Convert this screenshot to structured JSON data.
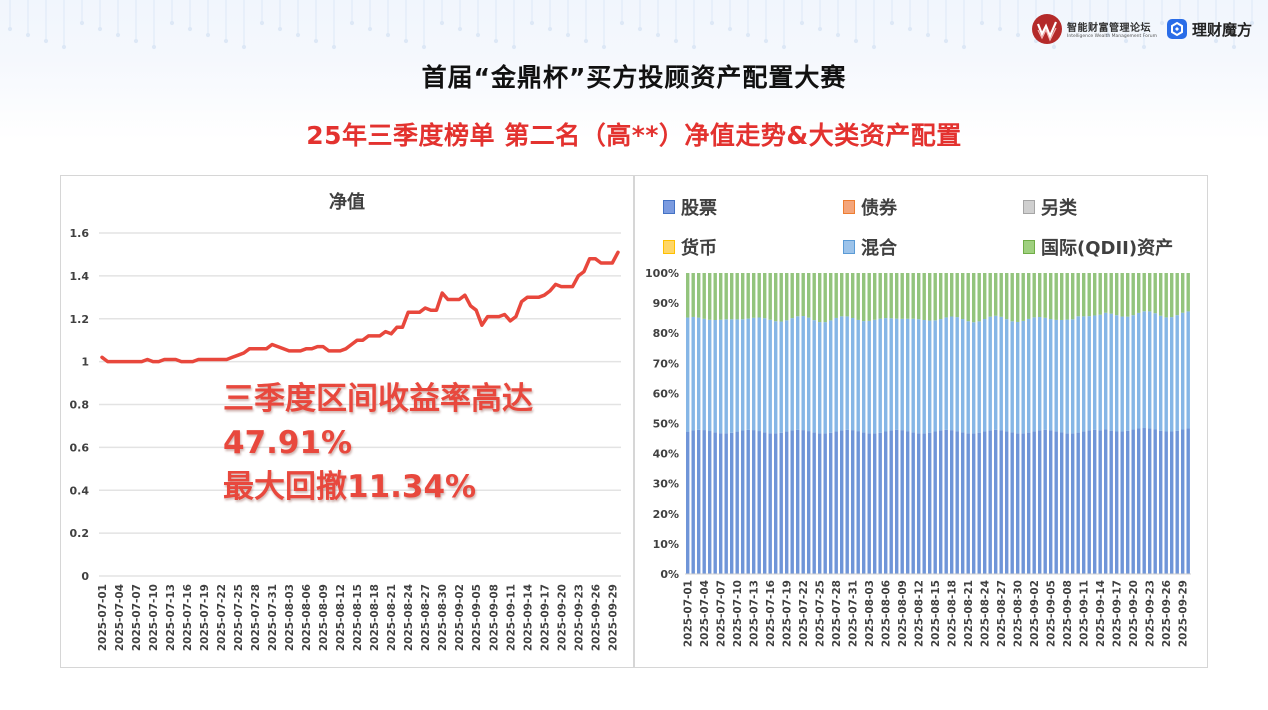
{
  "header": {
    "logos": [
      {
        "name": "智能财富管理论坛",
        "subtitle": "Intelligence Wealth Management Forum"
      },
      {
        "name": "理财魔方"
      }
    ],
    "title": "首届“金鼎杯”买方投顾资产配置大赛",
    "subtitle": "25年三季度榜单 第二名（高**）净值走势&大类资产配置"
  },
  "callout": {
    "line1": "三季度区间收益率高达",
    "line2": "47.91%",
    "line3": "最大回撤11.34%"
  },
  "colors": {
    "line": "#e8473c",
    "title_red": "#e3322f",
    "stock": "#4472c4",
    "bond": "#ed7d31",
    "alternative": "#a5a5a5",
    "cash": "#ffc000",
    "mixed": "#5b9bd5",
    "qdii": "#70ad47"
  },
  "chart_data": [
    {
      "type": "line",
      "title": "净值",
      "xlabel": "",
      "ylabel": "",
      "ylim": [
        0,
        1.6
      ],
      "yticks": [
        "0",
        "0.2",
        "0.4",
        "0.6",
        "0.8",
        "1",
        "1.2",
        "1.4",
        "1.6"
      ],
      "grid": true,
      "legend": "none",
      "x_tick_labels": [
        "2025-07-01",
        "2025-07-04",
        "2025-07-07",
        "2025-07-10",
        "2025-07-13",
        "2025-07-16",
        "2025-07-19",
        "2025-07-22",
        "2025-07-25",
        "2025-07-28",
        "2025-07-31",
        "2025-08-03",
        "2025-08-06",
        "2025-08-09",
        "2025-08-12",
        "2025-08-15",
        "2025-08-18",
        "2025-08-21",
        "2025-08-24",
        "2025-08-27",
        "2025-08-30",
        "2025-09-02",
        "2025-09-05",
        "2025-09-08",
        "2025-09-11",
        "2025-09-14",
        "2025-09-17",
        "2025-09-20",
        "2025-09-23",
        "2025-09-26",
        "2025-09-29"
      ],
      "series": [
        {
          "name": "净值",
          "values": [
            1.02,
            1.0,
            1.0,
            1.0,
            1.0,
            1.0,
            1.0,
            1.0,
            1.01,
            1.0,
            1.0,
            1.01,
            1.01,
            1.01,
            1.0,
            1.0,
            1.0,
            1.01,
            1.01,
            1.01,
            1.01,
            1.01,
            1.01,
            1.02,
            1.03,
            1.04,
            1.06,
            1.06,
            1.06,
            1.06,
            1.08,
            1.07,
            1.06,
            1.05,
            1.05,
            1.05,
            1.06,
            1.06,
            1.07,
            1.07,
            1.05,
            1.05,
            1.05,
            1.06,
            1.08,
            1.1,
            1.1,
            1.12,
            1.12,
            1.12,
            1.14,
            1.13,
            1.16,
            1.16,
            1.23,
            1.23,
            1.23,
            1.25,
            1.24,
            1.24,
            1.32,
            1.29,
            1.29,
            1.29,
            1.31,
            1.26,
            1.24,
            1.17,
            1.21,
            1.21,
            1.21,
            1.22,
            1.19,
            1.21,
            1.28,
            1.3,
            1.3,
            1.3,
            1.31,
            1.33,
            1.36,
            1.35,
            1.35,
            1.35,
            1.4,
            1.42,
            1.48,
            1.48,
            1.46,
            1.46,
            1.46,
            1.51
          ]
        }
      ]
    },
    {
      "type": "bar",
      "stacked": "percent",
      "title": "",
      "ylim": [
        0,
        100
      ],
      "yticks": [
        "0%",
        "10%",
        "20%",
        "30%",
        "40%",
        "50%",
        "60%",
        "70%",
        "80%",
        "90%",
        "100%"
      ],
      "grid": false,
      "legend_position": "top",
      "legend": [
        "股票",
        "债券",
        "另类",
        "货币",
        "混合",
        "国际(QDII)资产"
      ],
      "x_tick_labels": [
        "2025-07-01",
        "2025-07-04",
        "2025-07-07",
        "2025-07-10",
        "2025-07-13",
        "2025-07-16",
        "2025-07-19",
        "2025-07-22",
        "2025-07-25",
        "2025-07-28",
        "2025-07-31",
        "2025-08-03",
        "2025-08-06",
        "2025-08-09",
        "2025-08-12",
        "2025-08-15",
        "2025-08-18",
        "2025-08-21",
        "2025-08-24",
        "2025-08-27",
        "2025-08-30",
        "2025-09-02",
        "2025-09-05",
        "2025-09-08",
        "2025-09-11",
        "2025-09-14",
        "2025-09-17",
        "2025-09-20",
        "2025-09-23",
        "2025-09-26",
        "2025-09-29"
      ],
      "series": [
        {
          "name": "股票",
          "approx_value": 47.5,
          "range": [
            47,
            48.5
          ]
        },
        {
          "name": "债券",
          "approx_value": 0
        },
        {
          "name": "另类",
          "approx_value": 0
        },
        {
          "name": "货币",
          "approx_value": 0
        },
        {
          "name": "混合",
          "approx_value": 37.5,
          "range": [
            37,
            38.5
          ]
        },
        {
          "name": "国际(QDII)资产",
          "approx_value": 15,
          "range": [
            13.5,
            15.5
          ]
        }
      ],
      "bar_count": 92
    }
  ]
}
